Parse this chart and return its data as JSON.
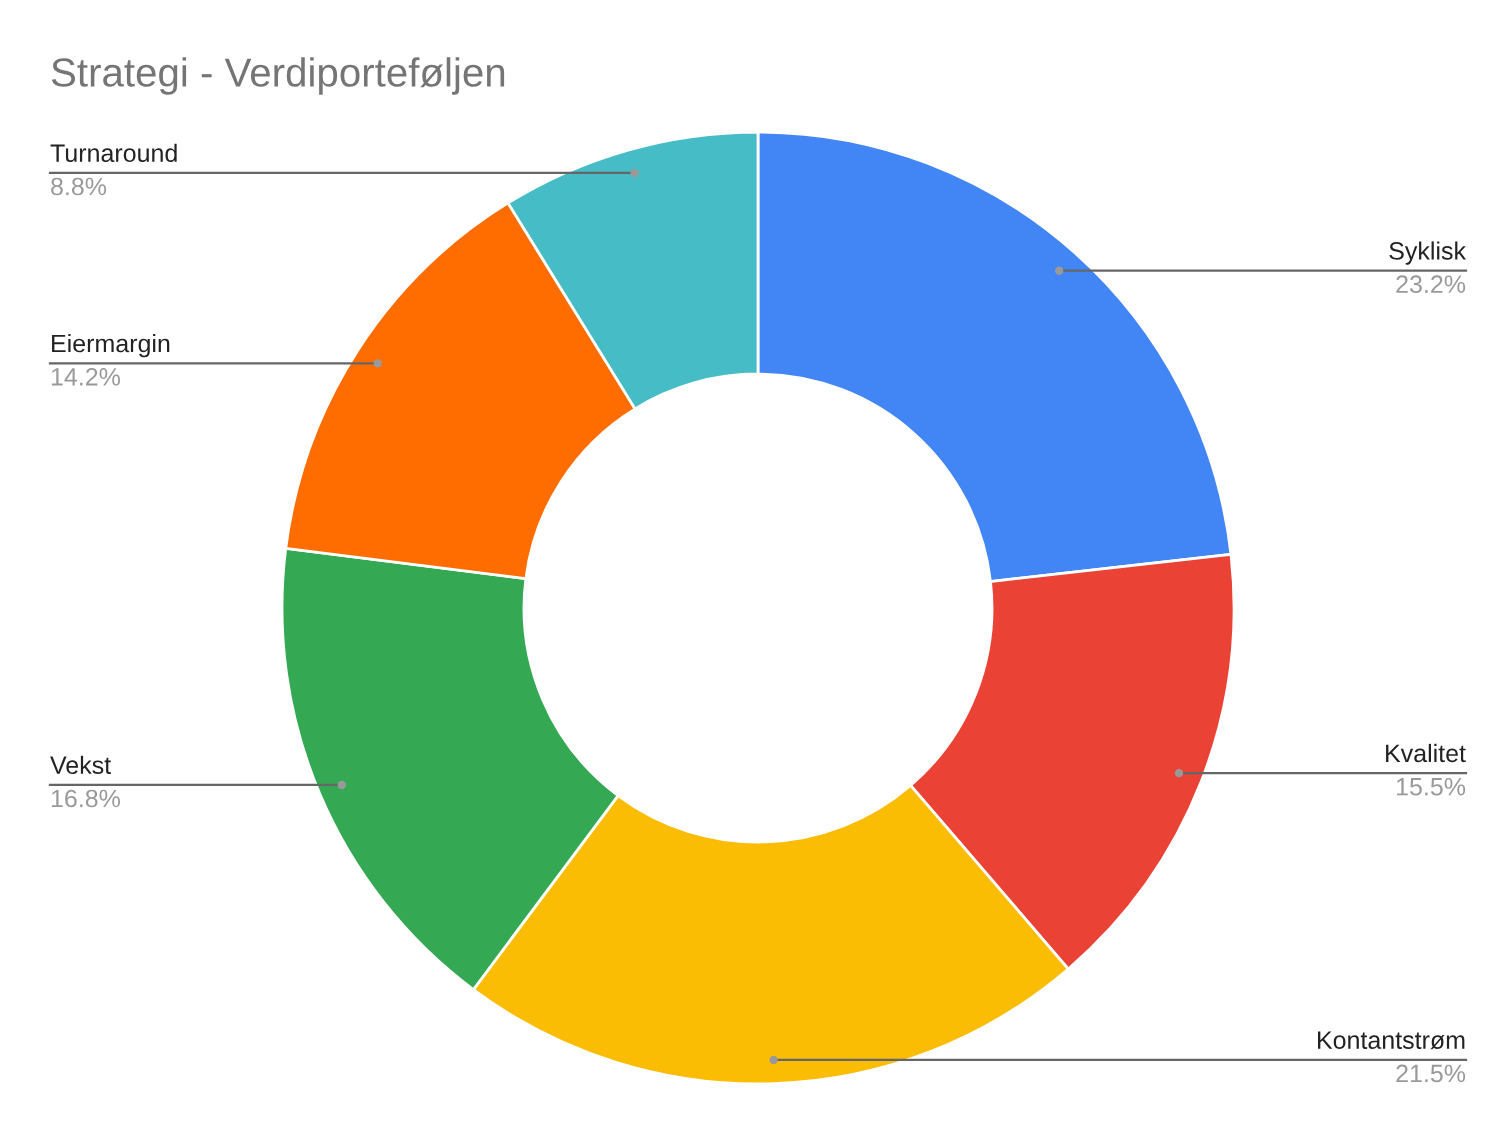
{
  "chart_data": {
    "type": "donut",
    "title": "Strategi - Verdiporteføljen",
    "categories": [
      "Syklisk",
      "Kvalitet",
      "Kontantstrøm",
      "Vekst",
      "Eiermargin",
      "Turnaround"
    ],
    "values": [
      23.2,
      15.5,
      21.5,
      16.8,
      14.2,
      8.8
    ],
    "value_labels": [
      "23.2%",
      "15.5%",
      "21.5%",
      "16.8%",
      "14.2%",
      "8.8%"
    ],
    "colors": [
      "#4285f4",
      "#ea4335",
      "#fbbc04",
      "#34a853",
      "#ff6d01",
      "#46bdc6"
    ],
    "legend": false
  }
}
